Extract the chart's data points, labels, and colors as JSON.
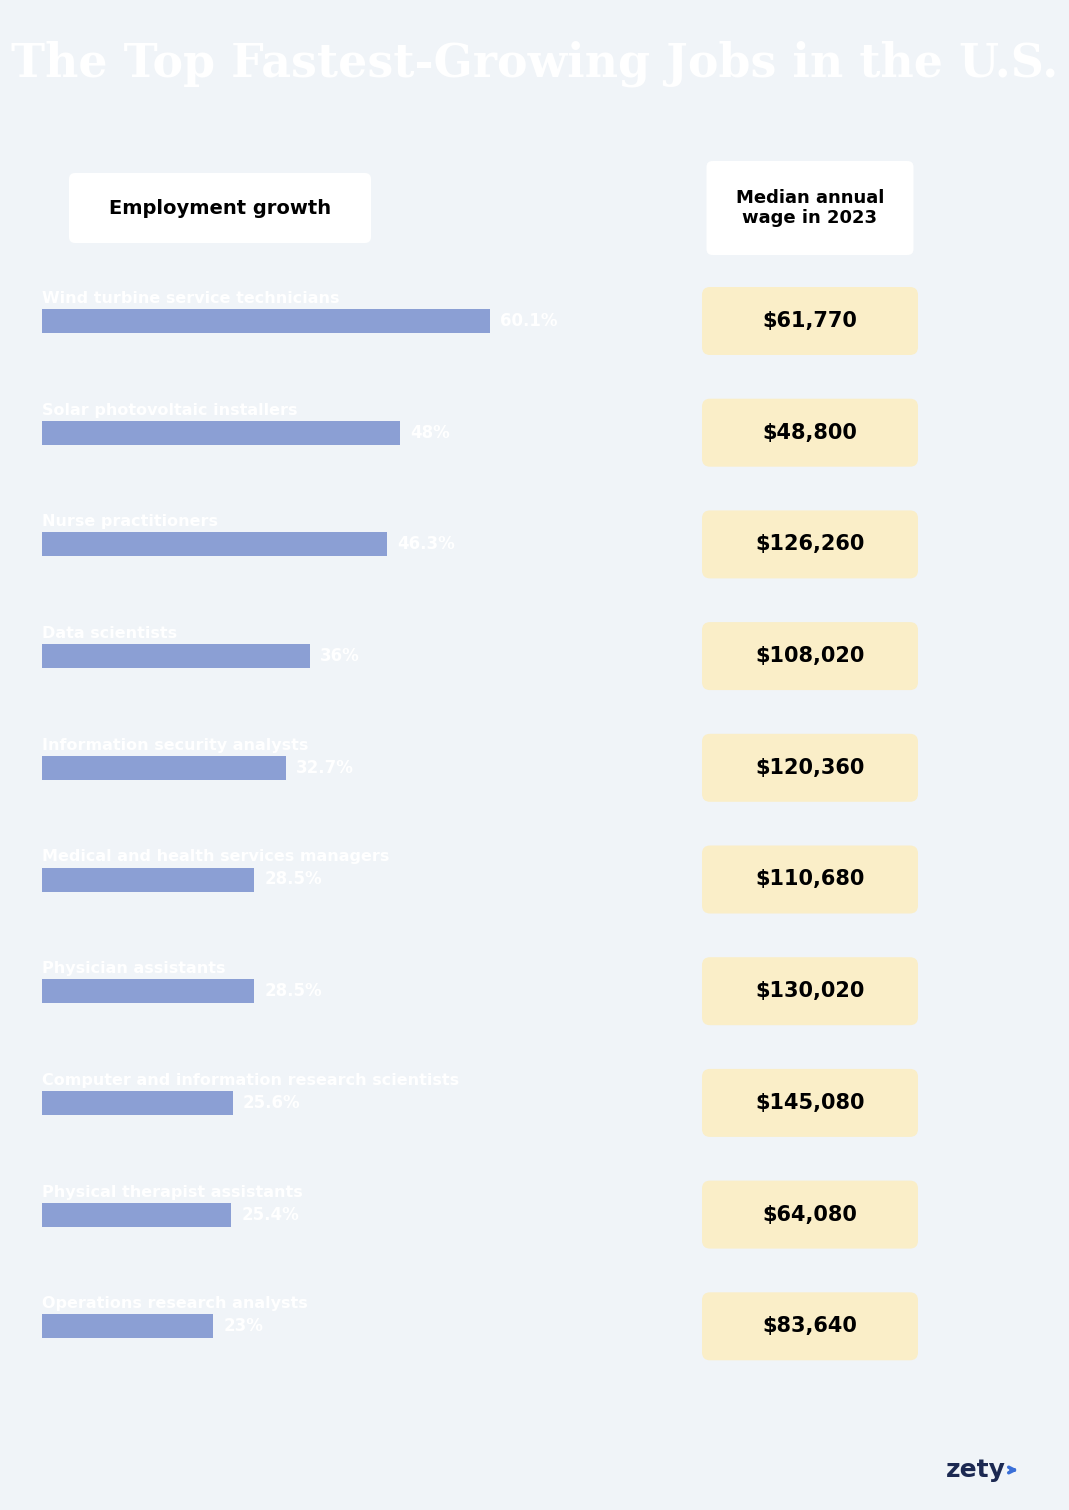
{
  "title": "The Top Fastest-Growing Jobs in the U.S.",
  "title_bg": "#505e7e",
  "main_bg": "#1c2952",
  "footer_bg": "#f0f4f8",
  "bar_color": "#8b9fd4",
  "wage_box_color": "#faeec8",
  "header_box_color": "#ffffff",
  "jobs": [
    {
      "name": "Wind turbine service technicians",
      "growth": 60.1,
      "growth_str": "60.1%",
      "wage": "$61,770"
    },
    {
      "name": "Solar photovoltaic installers",
      "growth": 48.0,
      "growth_str": "48%",
      "wage": "$48,800"
    },
    {
      "name": "Nurse practitioners",
      "growth": 46.3,
      "growth_str": "46.3%",
      "wage": "$126,260"
    },
    {
      "name": "Data scientists",
      "growth": 36.0,
      "growth_str": "36%",
      "wage": "$108,020"
    },
    {
      "name": "Information security analysts",
      "growth": 32.7,
      "growth_str": "32.7%",
      "wage": "$120,360"
    },
    {
      "name": "Medical and health services managers",
      "growth": 28.5,
      "growth_str": "28.5%",
      "wage": "$110,680"
    },
    {
      "name": "Physician assistants",
      "growth": 28.5,
      "growth_str": "28.5%",
      "wage": "$130,020"
    },
    {
      "name": "Computer and information research scientists",
      "growth": 25.6,
      "growth_str": "25.6%",
      "wage": "$145,080"
    },
    {
      "name": "Physical therapist assistants",
      "growth": 25.4,
      "growth_str": "25.4%",
      "wage": "$64,080"
    },
    {
      "name": "Operations research analysts",
      "growth": 23.0,
      "growth_str": "23%",
      "wage": "$83,640"
    }
  ],
  "max_bar_growth": 60.1,
  "label_left": "Employment growth",
  "label_right": "Median annual\nwage in 2023",
  "footer_text": "zety"
}
